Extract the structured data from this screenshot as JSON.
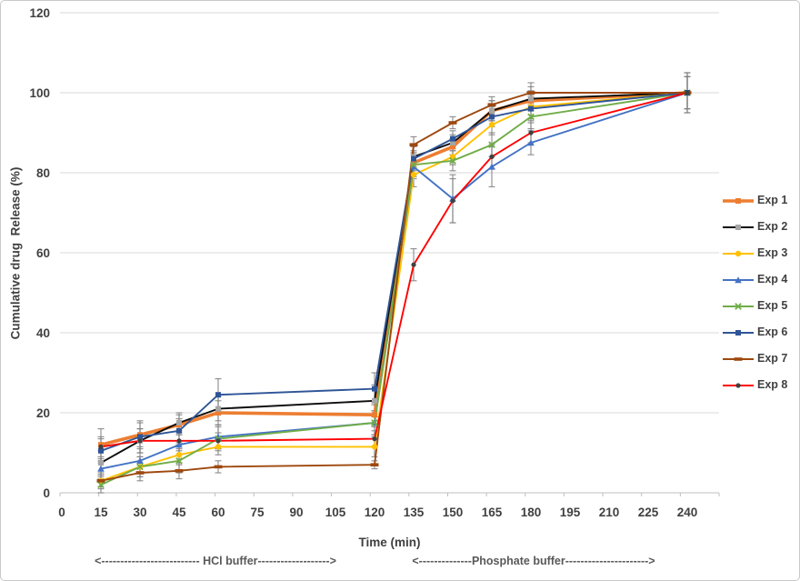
{
  "figure": {
    "type_label": "line chart",
    "x_axis_title": "Time (min)",
    "y_axis_title": "Cumulative drug  Release (%)",
    "annotations": {
      "hcl": "<-------------------------- HCl buffer------------------->",
      "phosphate": "<--------------Phosphate buffer---------------------->"
    }
  },
  "chart_data": {
    "type": "line",
    "title": "",
    "xlabel": "Time (min)",
    "ylabel": "Cumulative drug  Release (%)",
    "xlim": [
      0,
      255
    ],
    "ylim": [
      0,
      120
    ],
    "x_tick_labels": [
      0,
      15,
      30,
      45,
      60,
      75,
      90,
      105,
      120,
      135,
      150,
      165,
      180,
      195,
      210,
      225,
      240
    ],
    "y_tick_labels": [
      0,
      20,
      40,
      60,
      80,
      100,
      120
    ],
    "grid": "horizontal",
    "legend_position": "right",
    "x": [
      15,
      30,
      45,
      60,
      120,
      135,
      150,
      165,
      180,
      240
    ],
    "phase_note_x_split_min": 120,
    "series": [
      {
        "name": "Exp 1",
        "color": "#ED7D31",
        "marker": "square",
        "marker_color": "#ED7D31",
        "line_width": 3.6,
        "values": [
          12,
          14.5,
          17,
          20,
          19.5,
          82.5,
          86.5,
          95.5,
          98,
          100
        ],
        "err": [
          4,
          3,
          2.5,
          3,
          3,
          3,
          2,
          2.5,
          2.5,
          4
        ]
      },
      {
        "name": "Exp 2",
        "color": "#0D0D0D",
        "marker": "square",
        "marker_color": "#A5A5A5",
        "line_width": 1.9,
        "values": [
          7.5,
          13,
          17.5,
          21,
          23,
          84,
          87.5,
          95.5,
          98.5,
          100
        ],
        "err": [
          3,
          3,
          2.5,
          3,
          4,
          3,
          2,
          2.5,
          3,
          5
        ]
      },
      {
        "name": "Exp 3",
        "color": "#FFC000",
        "marker": "circle",
        "marker_color": "#FFC000",
        "line_width": 1.9,
        "values": [
          3,
          6.5,
          9.5,
          11.5,
          11.5,
          79.5,
          84,
          92,
          96.5,
          100
        ],
        "err": [
          2,
          2.5,
          2.5,
          2,
          2.5,
          3,
          2,
          2.5,
          3,
          4
        ]
      },
      {
        "name": "Exp 4",
        "color": "#4472C4",
        "marker": "triangle",
        "marker_color": "#4472C4",
        "line_width": 1.9,
        "values": [
          6,
          8,
          12,
          14,
          17.5,
          81.5,
          73.5,
          81.5,
          87.5,
          100
        ],
        "err": [
          2.5,
          3,
          2.5,
          3,
          3,
          3,
          6,
          5,
          3,
          4
        ]
      },
      {
        "name": "Exp 5",
        "color": "#70AD47",
        "marker": "x",
        "marker_color": "#70AD47",
        "line_width": 1.9,
        "values": [
          2,
          6.5,
          8,
          13.5,
          17.5,
          82,
          83,
          87,
          94,
          100
        ],
        "err": [
          2,
          2.5,
          3,
          3,
          3,
          3,
          2.5,
          3,
          3,
          4
        ]
      },
      {
        "name": "Exp 6",
        "color": "#2F5597",
        "marker": "square",
        "marker_color": "#2F5597",
        "line_width": 1.9,
        "values": [
          10.5,
          14,
          15.5,
          24.5,
          26,
          83.5,
          88.5,
          94,
          96,
          100
        ],
        "err": [
          3,
          4,
          3,
          4,
          4,
          3,
          2,
          2.5,
          3,
          5
        ]
      },
      {
        "name": "Exp 7",
        "color": "#9E480E",
        "marker": "dash",
        "marker_color": "#9E480E",
        "line_width": 1.9,
        "values": [
          3,
          5,
          5.5,
          6.5,
          7,
          87,
          92.5,
          97,
          100,
          100
        ],
        "err": [
          1.5,
          2,
          2,
          1.5,
          1,
          2,
          1.5,
          2,
          2.5,
          4
        ]
      },
      {
        "name": "Exp 8",
        "color": "#FF0000",
        "marker": "dot",
        "marker_color": "#404040",
        "line_width": 1.9,
        "values": [
          11.5,
          13,
          13,
          13,
          13.5,
          57,
          73,
          84,
          90,
          100
        ],
        "err": [
          2.5,
          3,
          2.5,
          2,
          2,
          4,
          5.5,
          3,
          2.5,
          5
        ]
      }
    ],
    "error_bar_color": "#7F7F7F",
    "gridline_color": "#D9D9D9",
    "axis_line_color": "#BFBFBF"
  }
}
